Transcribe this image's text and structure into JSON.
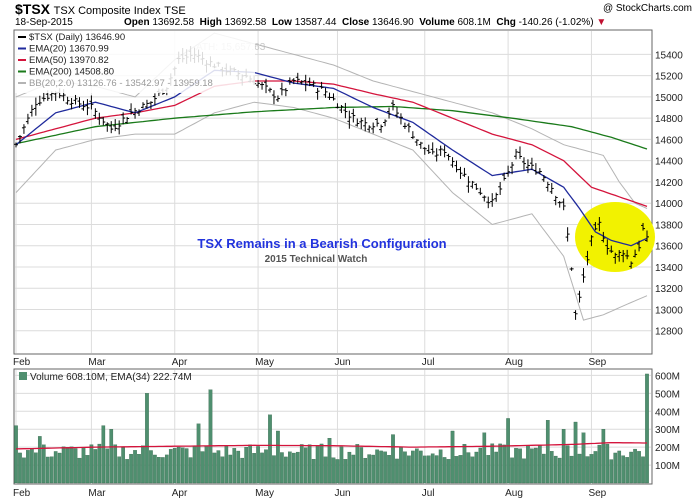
{
  "header": {
    "symbol": "$TSX",
    "name": "TSX Composite Index",
    "exchange": "TSE",
    "copyright": "@ StockCharts.com",
    "date": "18-Sep-2015",
    "open_label": "Open",
    "open": "13692.58",
    "high_label": "High",
    "high": "13692.58",
    "low_label": "Low",
    "low": "13587.44",
    "close_label": "Close",
    "close": "13646.90",
    "volume_label": "Volume",
    "volume": "608.1M",
    "chg_label": "Chg",
    "chg": "-140.26 (-1.02%)"
  },
  "colors": {
    "price_bar": "#000000",
    "ema20": "#1f2a9c",
    "ema50": "#d4143c",
    "ema200": "#1a7a1a",
    "bollinger": "#b4b4b4",
    "volume_bar": "#4f8f6f",
    "volume_ema": "#d4143c",
    "grid": "#dcdcdc",
    "annotation": "#2233dd",
    "highlight": "#f2f200"
  },
  "chart_data": [
    {
      "type": "line",
      "title": "",
      "legend": [
        {
          "id": "price",
          "label": "$TSX (Daily) 13646.90"
        },
        {
          "id": "ema20",
          "label": "EMA(20) 13670.99"
        },
        {
          "id": "ema50",
          "label": "EMA(50) 13970.82"
        },
        {
          "id": "ema200",
          "label": "EMA(200) 14508.80"
        },
        {
          "id": "bb",
          "label": "BB(20,2.0) 13126.76 - 13542.97 - 13959.18"
        }
      ],
      "legend_position": "top-left",
      "annotation_ath": "ATH: 15,657.63",
      "annotation_title": "TSX Remains in a Bearish Configuration",
      "annotation_subtitle": "2015 Technical Watch",
      "y_ticks": [
        12800,
        13000,
        13200,
        13400,
        13600,
        13800,
        14000,
        14200,
        14400,
        14600,
        14800,
        15000,
        15200,
        15400
      ],
      "ylim": [
        12600,
        15620
      ],
      "y_axis_position": "right",
      "grid": true,
      "x_ticks": [
        "Feb",
        "Mar",
        "Apr",
        "May",
        "Jun",
        "Jul",
        "Aug",
        "Sep"
      ],
      "x_tick_index": [
        0,
        19,
        40,
        61,
        81,
        103,
        124,
        145
      ],
      "n_bars": 160,
      "price_series": "daily OHLC bars",
      "close_anchors": [
        [
          0,
          14550
        ],
        [
          5,
          14950
        ],
        [
          10,
          15050
        ],
        [
          15,
          14950
        ],
        [
          19,
          14900
        ],
        [
          24,
          14700
        ],
        [
          29,
          14850
        ],
        [
          34,
          14950
        ],
        [
          38,
          15100
        ],
        [
          41,
          15350
        ],
        [
          45,
          15400
        ],
        [
          49,
          15320
        ],
        [
          53,
          15250
        ],
        [
          58,
          15200
        ],
        [
          62,
          15100
        ],
        [
          66,
          15000
        ],
        [
          70,
          15150
        ],
        [
          74,
          15120
        ],
        [
          78,
          15050
        ],
        [
          82,
          14900
        ],
        [
          85,
          14800
        ],
        [
          88,
          14750
        ],
        [
          92,
          14750
        ],
        [
          95,
          14900
        ],
        [
          99,
          14700
        ],
        [
          102,
          14550
        ],
        [
          105,
          14450
        ],
        [
          108,
          14500
        ],
        [
          112,
          14300
        ],
        [
          116,
          14150
        ],
        [
          120,
          14000
        ],
        [
          123,
          14200
        ],
        [
          126,
          14450
        ],
        [
          129,
          14350
        ],
        [
          132,
          14300
        ],
        [
          135,
          14150
        ],
        [
          138,
          13950
        ],
        [
          139,
          13700
        ],
        [
          140,
          13400
        ],
        [
          141,
          12950
        ],
        [
          142,
          13100
        ],
        [
          143,
          13300
        ],
        [
          145,
          13650
        ],
        [
          147,
          13800
        ],
        [
          149,
          13600
        ],
        [
          151,
          13500
        ],
        [
          153,
          13550
        ],
        [
          155,
          13450
        ],
        [
          157,
          13600
        ],
        [
          158,
          13750
        ],
        [
          159,
          13650
        ]
      ],
      "ema20_anchors": [
        [
          0,
          14550
        ],
        [
          10,
          14850
        ],
        [
          20,
          14950
        ],
        [
          30,
          14850
        ],
        [
          40,
          15000
        ],
        [
          50,
          15250
        ],
        [
          60,
          15230
        ],
        [
          70,
          15130
        ],
        [
          80,
          15080
        ],
        [
          90,
          14900
        ],
        [
          100,
          14760
        ],
        [
          110,
          14500
        ],
        [
          120,
          14260
        ],
        [
          130,
          14320
        ],
        [
          138,
          14150
        ],
        [
          142,
          13950
        ],
        [
          146,
          13730
        ],
        [
          150,
          13650
        ],
        [
          155,
          13600
        ],
        [
          159,
          13670
        ]
      ],
      "ema50_anchors": [
        [
          0,
          14600
        ],
        [
          10,
          14700
        ],
        [
          20,
          14800
        ],
        [
          30,
          14850
        ],
        [
          40,
          14920
        ],
        [
          50,
          15100
        ],
        [
          60,
          15150
        ],
        [
          70,
          15150
        ],
        [
          80,
          15120
        ],
        [
          90,
          15030
        ],
        [
          100,
          14950
        ],
        [
          110,
          14800
        ],
        [
          120,
          14650
        ],
        [
          130,
          14550
        ],
        [
          138,
          14400
        ],
        [
          145,
          14150
        ],
        [
          152,
          14060
        ],
        [
          159,
          13970
        ]
      ],
      "ema200_anchors": [
        [
          0,
          14560
        ],
        [
          20,
          14720
        ],
        [
          40,
          14800
        ],
        [
          60,
          14860
        ],
        [
          80,
          14900
        ],
        [
          95,
          14910
        ],
        [
          110,
          14870
        ],
        [
          125,
          14800
        ],
        [
          140,
          14720
        ],
        [
          150,
          14620
        ],
        [
          159,
          14510
        ]
      ],
      "bb_upper_anchors": [
        [
          0,
          15000
        ],
        [
          10,
          15150
        ],
        [
          20,
          15100
        ],
        [
          30,
          15000
        ],
        [
          40,
          15350
        ],
        [
          50,
          15600
        ],
        [
          60,
          15500
        ],
        [
          70,
          15400
        ],
        [
          80,
          15300
        ],
        [
          90,
          15150
        ],
        [
          100,
          15050
        ],
        [
          110,
          14950
        ],
        [
          120,
          14850
        ],
        [
          130,
          14700
        ],
        [
          138,
          14550
        ],
        [
          143,
          14500
        ],
        [
          148,
          14450
        ],
        [
          152,
          14200
        ],
        [
          156,
          14000
        ],
        [
          159,
          13950
        ]
      ],
      "bb_lower_anchors": [
        [
          0,
          14100
        ],
        [
          10,
          14500
        ],
        [
          20,
          14600
        ],
        [
          30,
          14650
        ],
        [
          40,
          14650
        ],
        [
          50,
          14850
        ],
        [
          60,
          14950
        ],
        [
          70,
          14900
        ],
        [
          80,
          14800
        ],
        [
          90,
          14650
        ],
        [
          100,
          14500
        ],
        [
          110,
          14100
        ],
        [
          120,
          13800
        ],
        [
          130,
          13900
        ],
        [
          138,
          13500
        ],
        [
          143,
          12900
        ],
        [
          148,
          12950
        ],
        [
          154,
          13050
        ],
        [
          159,
          13130
        ]
      ]
    },
    {
      "type": "bar",
      "title": "",
      "legend_label": "Volume 608.10M, EMA(34) 222.74M",
      "y_ticks": [
        100,
        200,
        300,
        400,
        500,
        600
      ],
      "y_tick_labels": [
        "100M",
        "200M",
        "300M",
        "400M",
        "500M",
        "600M"
      ],
      "ylim": [
        0,
        630
      ],
      "y_axis_position": "right",
      "grid": true,
      "x_ticks": [
        "Feb",
        "Mar",
        "Apr",
        "May",
        "Jun",
        "Jul",
        "Aug",
        "Sep"
      ],
      "x_tick_index": [
        0,
        19,
        40,
        61,
        81,
        103,
        124,
        145
      ],
      "n_bars": 160,
      "volume_base": 175,
      "volume_spikes": [
        [
          0,
          320
        ],
        [
          6,
          260
        ],
        [
          22,
          320
        ],
        [
          24,
          300
        ],
        [
          33,
          500
        ],
        [
          46,
          330
        ],
        [
          49,
          520
        ],
        [
          64,
          380
        ],
        [
          66,
          290
        ],
        [
          79,
          250
        ],
        [
          95,
          270
        ],
        [
          110,
          290
        ],
        [
          118,
          280
        ],
        [
          124,
          360
        ],
        [
          134,
          350
        ],
        [
          138,
          300
        ],
        [
          141,
          340
        ],
        [
          143,
          280
        ],
        [
          148,
          300
        ],
        [
          159,
          608
        ]
      ],
      "ema_anchors": [
        [
          0,
          190
        ],
        [
          20,
          200
        ],
        [
          40,
          205
        ],
        [
          60,
          210
        ],
        [
          80,
          208
        ],
        [
          100,
          200
        ],
        [
          120,
          205
        ],
        [
          140,
          215
        ],
        [
          150,
          225
        ],
        [
          159,
          223
        ]
      ]
    }
  ]
}
